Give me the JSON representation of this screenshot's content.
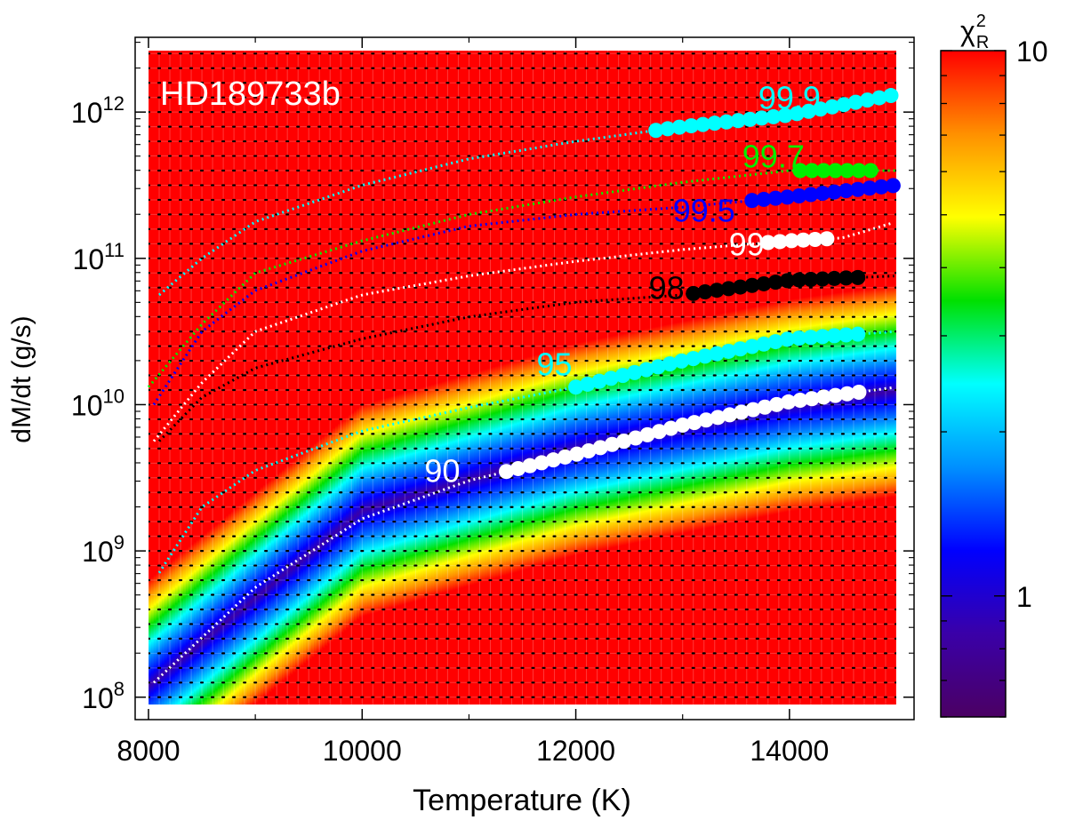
{
  "chart_data": {
    "type": "heatmap",
    "title": "HD189733b",
    "xlabel": "Temperature (K)",
    "ylabel": "dM/dt (g/s)",
    "xlim": [
      8000,
      15000
    ],
    "ylim_log10": [
      7.95,
      12.42
    ],
    "x_ticks": [
      {
        "value": 8000,
        "label": "8000"
      },
      {
        "value": 10000,
        "label": "10000"
      },
      {
        "value": 12000,
        "label": "12000"
      },
      {
        "value": 14000,
        "label": "14000"
      }
    ],
    "y_ticks": [
      {
        "exp": 8,
        "base": "10",
        "sup": "8"
      },
      {
        "exp": 9,
        "base": "10",
        "sup": "9"
      },
      {
        "exp": 10,
        "base": "10",
        "sup": "10"
      },
      {
        "exp": 11,
        "base": "10",
        "sup": "11"
      },
      {
        "exp": 12,
        "base": "10",
        "sup": "12"
      }
    ],
    "grid_temperature_step": 100,
    "grid_logmdot_step": 0.1,
    "valley_logmdot_fit": {
      "T": [
        8000,
        10000,
        12000,
        14000,
        15000
      ],
      "logMdot": [
        8.1,
        9.3,
        9.72,
        10.02,
        10.12
      ]
    },
    "colorbar": {
      "label_base": "χ",
      "label_sup": "2",
      "label_sub": "R",
      "scale": "log",
      "range": [
        0.6,
        10
      ],
      "ticks": [
        {
          "value": 1,
          "label": "1"
        },
        {
          "value": 10,
          "label": "10"
        }
      ],
      "colors": [
        "#4b0063",
        "#3a00a8",
        "#0000ff",
        "#0090ff",
        "#00ffff",
        "#00e000",
        "#ffff00",
        "#ff9000",
        "#ff0000"
      ]
    },
    "contours": [
      {
        "level": "90",
        "label": "90",
        "color": "#ffffff",
        "T": [
          8050,
          9000,
          10000,
          11000,
          12000,
          13000,
          14000,
          15000
        ],
        "logMdot": [
          8.1,
          8.75,
          9.22,
          9.48,
          9.66,
          9.86,
          10.02,
          10.12
        ],
        "marker_from": 11350,
        "marker_to": 14650,
        "marker_step": 110,
        "label_T": 10750,
        "label_logMdot": 9.55
      },
      {
        "level": "95",
        "label": "95",
        "color": "#00ffff",
        "T": [
          8100,
          8500,
          9000,
          10000,
          11000,
          12000,
          13000,
          14000,
          15000
        ],
        "logMdot": [
          8.85,
          9.3,
          9.55,
          9.82,
          9.98,
          10.12,
          10.3,
          10.45,
          10.5
        ],
        "marker_from": 12000,
        "marker_to": 14650,
        "marker_step": 110,
        "label_T": 11800,
        "label_logMdot": 10.28
      },
      {
        "level": "98",
        "label": "98",
        "color": "#000000",
        "T": [
          8100,
          8500,
          9000,
          10000,
          11000,
          12000,
          13000,
          14000,
          15000
        ],
        "logMdot": [
          9.75,
          10.05,
          10.25,
          10.45,
          10.6,
          10.7,
          10.75,
          10.85,
          10.88
        ],
        "marker_from": 13100,
        "marker_to": 14650,
        "marker_step": 110,
        "label_T": 12850,
        "label_logMdot": 10.8
      },
      {
        "level": "99",
        "label": "99",
        "color": "#ffffff",
        "T": [
          8050,
          8500,
          9000,
          10000,
          11000,
          12000,
          13000,
          14000,
          14500,
          15000
        ],
        "logMdot": [
          9.75,
          10.15,
          10.5,
          10.75,
          10.88,
          10.98,
          11.06,
          11.12,
          11.14,
          11.25
        ],
        "marker_from": 13800,
        "marker_to": 14370,
        "marker_step": 110,
        "label_T": 13600,
        "label_logMdot": 11.1
      },
      {
        "level": "99.5",
        "label": "99.5",
        "color": "#0000ff",
        "T": [
          8050,
          8500,
          9000,
          10000,
          11000,
          12000,
          13000,
          14000,
          15000
        ],
        "logMdot": [
          10.0,
          10.5,
          10.78,
          11.05,
          11.22,
          11.3,
          11.35,
          11.42,
          11.5
        ],
        "marker_from": 13650,
        "marker_to": 15000,
        "marker_step": 110,
        "label_T": 13200,
        "label_logMdot": 11.33
      },
      {
        "level": "99.7",
        "label": "99.7",
        "color": "#00ee00",
        "T": [
          8000,
          8500,
          9000,
          10000,
          11000,
          12000,
          13000,
          14000,
          15000
        ],
        "logMdot": [
          10.12,
          10.55,
          10.9,
          11.12,
          11.3,
          11.42,
          11.52,
          11.6,
          11.6
        ],
        "marker_from": 14100,
        "marker_to": 14760,
        "marker_step": 110,
        "label_T": 13850,
        "label_logMdot": 11.7
      },
      {
        "level": "99.9",
        "label": "99.9",
        "color": "#00ffff",
        "T": [
          8100,
          8500,
          9000,
          10000,
          11000,
          12000,
          13000,
          14000,
          15000
        ],
        "logMdot": [
          10.75,
          11.0,
          11.25,
          11.5,
          11.68,
          11.8,
          11.9,
          11.98,
          12.12
        ],
        "marker_from": 12750,
        "marker_to": 15000,
        "marker_step": 110,
        "label_T": 14000,
        "label_logMdot": 12.1
      }
    ]
  }
}
